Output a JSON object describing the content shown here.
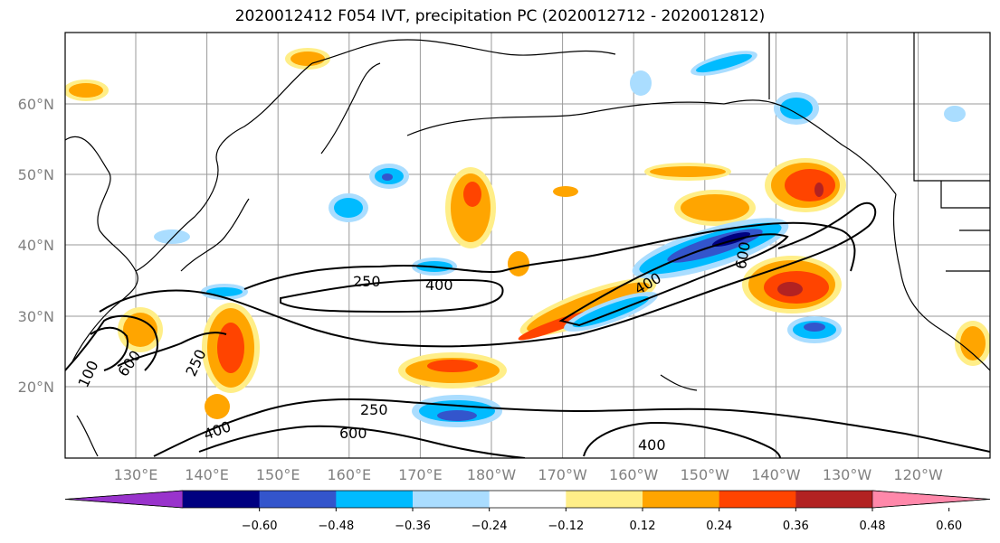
{
  "title": "2020012412 F054 IVT, precipitation PC (2020012712 - 2020012812)",
  "lat_labels": [
    "60°N",
    "50°N",
    "40°N",
    "30°N",
    "20°N"
  ],
  "lon_labels": [
    "130°E",
    "140°E",
    "150°E",
    "160°E",
    "170°E",
    "180°W",
    "170°W",
    "160°W",
    "150°W",
    "140°W",
    "130°W",
    "120°W"
  ],
  "colorbar": {
    "colors": [
      "#9933cc",
      "#000080",
      "#3355cc",
      "#00bbff",
      "#aaddff",
      "#ffffff",
      "#ffee88",
      "#ffa500",
      "#ff4400",
      "#b22222",
      "#ff88aa"
    ],
    "ticks": [
      "−0.60",
      "−0.48",
      "−0.36",
      "−0.24",
      "−0.12",
      "0.12",
      "0.24",
      "0.36",
      "0.48",
      "0.60"
    ]
  },
  "contour_labels": [
    "250",
    "400",
    "400",
    "600",
    "250",
    "600",
    "100",
    "250",
    "600",
    "400",
    "400"
  ]
}
